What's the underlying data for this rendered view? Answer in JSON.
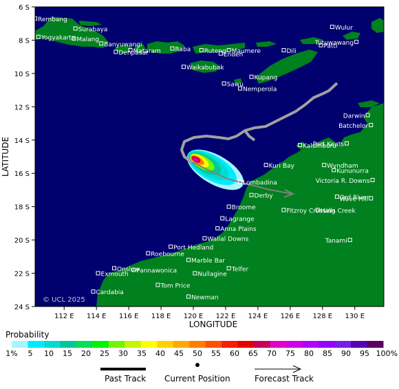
{
  "axes": {
    "ylabel": "LATITUDE",
    "xlabel": "LONGITUDE",
    "lat_ticks": [
      "6 S",
      "8 S",
      "10 S",
      "12 S",
      "14 S",
      "16 S",
      "18 S",
      "20 S",
      "22 S",
      "24 S"
    ],
    "lon_ticks": [
      "112 E",
      "114 E",
      "116 E",
      "118 E",
      "120 E",
      "122 E",
      "124 E",
      "126 E",
      "128 E",
      "130 E"
    ]
  },
  "copyright": "© UCL 2025",
  "places": [
    {
      "name": "Rembang",
      "lon": 110.2,
      "lat": -6.7
    },
    {
      "name": "Surabaya",
      "lon": 112.7,
      "lat": -7.3
    },
    {
      "name": "Yogyakarta",
      "lon": 110.4,
      "lat": -7.8
    },
    {
      "name": "Malang",
      "lon": 112.6,
      "lat": -7.9
    },
    {
      "name": "Banyuwangi",
      "lon": 114.3,
      "lat": -8.2
    },
    {
      "name": "Mataram",
      "lon": 116.1,
      "lat": -8.6
    },
    {
      "name": "Denpasar",
      "lon": 115.2,
      "lat": -8.7
    },
    {
      "name": "Raba",
      "lon": 118.7,
      "lat": -8.5
    },
    {
      "name": "Ruteng",
      "lon": 120.5,
      "lat": -8.6
    },
    {
      "name": "Maumere",
      "lon": 122.2,
      "lat": -8.6
    },
    {
      "name": "Endeh",
      "lon": 121.7,
      "lat": -8.8
    },
    {
      "name": "Waikabubak",
      "lon": 119.4,
      "lat": -9.6
    },
    {
      "name": "Dili",
      "lon": 125.6,
      "lat": -8.6
    },
    {
      "name": "Wulur",
      "lon": 128.6,
      "lat": -7.2
    },
    {
      "name": "Tutuwawang",
      "lon": 130.1,
      "lat": -8.1
    },
    {
      "name": "Patti",
      "lon": 127.9,
      "lat": -8.3
    },
    {
      "name": "Kupang",
      "lon": 123.6,
      "lat": -10.2
    },
    {
      "name": "Sawu",
      "lon": 121.9,
      "lat": -10.6
    },
    {
      "name": "Nemperola",
      "lon": 122.9,
      "lat": -10.9
    },
    {
      "name": "Darwin",
      "lon": 130.8,
      "lat": -12.5
    },
    {
      "name": "Batchelor",
      "lon": 131.0,
      "lat": -13.1
    },
    {
      "name": "Kalumburu",
      "lon": 126.6,
      "lat": -14.3
    },
    {
      "name": "Port Keats",
      "lon": 129.5,
      "lat": -14.2
    },
    {
      "name": "Wyndham",
      "lon": 128.1,
      "lat": -15.5
    },
    {
      "name": "Kununurra",
      "lon": 128.7,
      "lat": -15.8
    },
    {
      "name": "Kuri Bay",
      "lon": 124.5,
      "lat": -15.5
    },
    {
      "name": "Victoria R. Downs",
      "lon": 131.1,
      "lat": -16.4
    },
    {
      "name": "Lombadina",
      "lon": 122.9,
      "lat": -16.5
    },
    {
      "name": "Derby",
      "lon": 123.6,
      "lat": -17.3
    },
    {
      "name": "Wave Hill",
      "lon": 131.0,
      "lat": -17.5
    },
    {
      "name": "Ord River",
      "lon": 128.9,
      "lat": -17.4
    },
    {
      "name": "Halls Creek",
      "lon": 127.7,
      "lat": -18.2
    },
    {
      "name": "Broome",
      "lon": 122.2,
      "lat": -18.0
    },
    {
      "name": "Fitzroy Crossing",
      "lon": 125.6,
      "lat": -18.2
    },
    {
      "name": "Lagrange",
      "lon": 121.8,
      "lat": -18.7
    },
    {
      "name": "Anna Plains",
      "lon": 121.5,
      "lat": -19.3
    },
    {
      "name": "Wallal Downs",
      "lon": 120.7,
      "lat": -19.9
    },
    {
      "name": "Tanami",
      "lon": 129.7,
      "lat": -20.0
    },
    {
      "name": "Port Hedland",
      "lon": 118.6,
      "lat": -20.4
    },
    {
      "name": "Roebourne",
      "lon": 117.2,
      "lat": -20.8
    },
    {
      "name": "Marble Bar",
      "lon": 119.7,
      "lat": -21.2
    },
    {
      "name": "Onslow",
      "lon": 115.1,
      "lat": -21.7
    },
    {
      "name": "Telfer",
      "lon": 122.2,
      "lat": -21.7
    },
    {
      "name": "Exmouth",
      "lon": 114.1,
      "lat": -22.0
    },
    {
      "name": "Pannawonica",
      "lon": 116.3,
      "lat": -21.8
    },
    {
      "name": "Nullagine",
      "lon": 120.1,
      "lat": -22.0
    },
    {
      "name": "Tom Price",
      "lon": 117.8,
      "lat": -22.7
    },
    {
      "name": "Cardabia",
      "lon": 113.8,
      "lat": -23.1
    },
    {
      "name": "Newman",
      "lon": 119.7,
      "lat": -23.4
    }
  ],
  "legend": {
    "title": "Probability",
    "colors": [
      "#a6f5ff",
      "#00ebff",
      "#00dcd2",
      "#00c89b",
      "#00e155",
      "#00f500",
      "#73f500",
      "#c8f500",
      "#ffff00",
      "#ffd200",
      "#ffaa00",
      "#ff7d00",
      "#ff5000",
      "#f51e00",
      "#e60000",
      "#c8005a",
      "#e600c8",
      "#d200e6",
      "#b400ff",
      "#9600ff",
      "#781ee6",
      "#5a00b4",
      "#5a0064"
    ],
    "labels": [
      "1%",
      "5",
      "10",
      "15",
      "20",
      "25",
      "30",
      "35",
      "40",
      "45",
      "50",
      "55",
      "60",
      "65",
      "70",
      "75",
      "80",
      "85",
      "90",
      "95",
      "100%"
    ],
    "past_track_label": "Past Track",
    "current_position_label": "Current Position",
    "forecast_track_label": "Forecast Track"
  },
  "colors": {
    "ocean": "#00006e",
    "land": "#00801e",
    "track": "#a0a0a0"
  }
}
